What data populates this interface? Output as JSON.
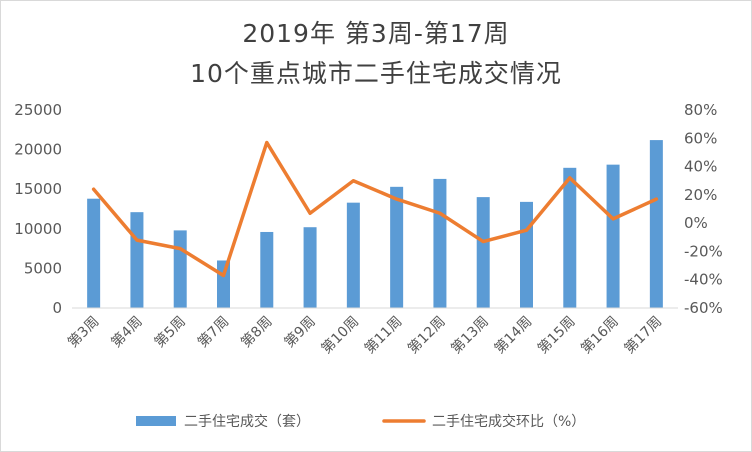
{
  "title": {
    "line1": "2019年 第3周-第17周",
    "line2": "10个重点城市二手住宅成交情况"
  },
  "chart_data": {
    "type": "bar+line",
    "categories": [
      "第3周",
      "第4周",
      "第5周",
      "第7周",
      "第8周",
      "第9周",
      "第10周",
      "第11周",
      "第12周",
      "第13周",
      "第14周",
      "第15周",
      "第16周",
      "第17周"
    ],
    "series": [
      {
        "name": "二手住宅成交（套）",
        "type": "bar",
        "axis": "left",
        "color": "#5b9bd5",
        "values": [
          13800,
          12100,
          9800,
          6000,
          9600,
          10200,
          13300,
          15300,
          16300,
          14000,
          13400,
          17700,
          18100,
          21200
        ]
      },
      {
        "name": "二手住宅成交环比（%）",
        "type": "line",
        "axis": "right",
        "color": "#ed7d31",
        "values": [
          24,
          -12,
          -18,
          -37,
          57,
          7,
          30,
          17,
          7,
          -13,
          -5,
          32,
          3,
          17
        ]
      }
    ],
    "left_axis": {
      "min": 0,
      "max": 25000,
      "ticks": [
        "0",
        "5000",
        "10000",
        "15000",
        "20000",
        "25000"
      ]
    },
    "right_axis": {
      "min": -60,
      "max": 80,
      "ticks": [
        "-60%",
        "-40%",
        "-20%",
        "0%",
        "20%",
        "40%",
        "60%",
        "80%"
      ]
    },
    "grid": false,
    "legend_position": "bottom"
  }
}
